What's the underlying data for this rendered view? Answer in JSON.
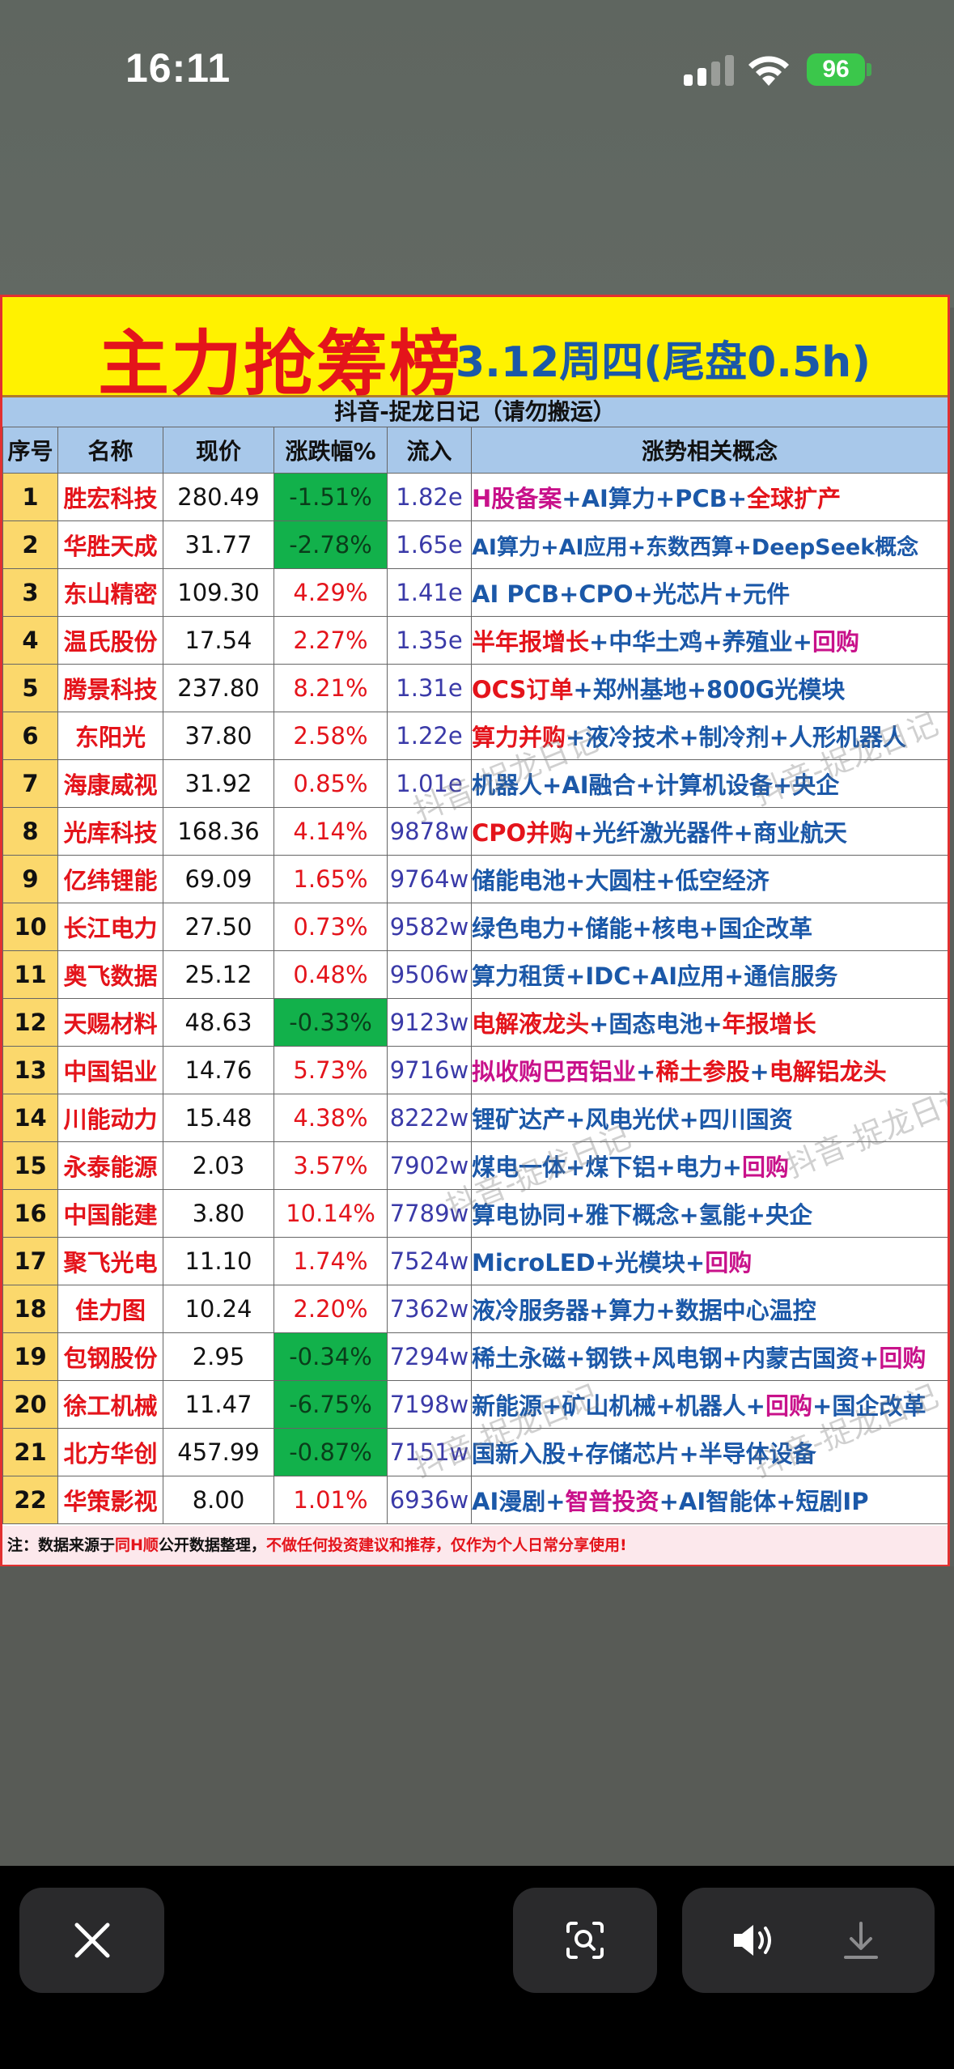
{
  "status_bar": {
    "time": "16:11",
    "battery": "96"
  },
  "card": {
    "title": "主力抢筹榜",
    "subtitle": "3.12周四(尾盘0.5h)",
    "source": "抖音-捉龙日记（请勿搬运）",
    "headers": [
      "序号",
      "名称",
      "现价",
      "涨跌幅%",
      "流入",
      "涨势相关概念"
    ],
    "rows": [
      {
        "idx": "1",
        "name": "胜宏科技",
        "price": "280.49",
        "change": "-1.51%",
        "flow": "1.82e",
        "concepts": [
          [
            "H股备案",
            "mag"
          ],
          [
            "AI算力",
            "blue"
          ],
          [
            "PCB",
            "blue"
          ],
          [
            "全球扩产",
            "red"
          ]
        ]
      },
      {
        "idx": "2",
        "name": "华胜天成",
        "price": "31.77",
        "change": "-2.78%",
        "flow": "1.65e",
        "concepts": [
          [
            "AI算力",
            "blue"
          ],
          [
            "AI应用",
            "blue"
          ],
          [
            "东数西算",
            "blue"
          ],
          [
            "DeepSeek概念",
            "blue"
          ]
        ]
      },
      {
        "idx": "3",
        "name": "东山精密",
        "price": "109.30",
        "change": "4.29%",
        "flow": "1.41e",
        "concepts": [
          [
            "AI PCB",
            "blue"
          ],
          [
            "CPO",
            "blue"
          ],
          [
            "光芯片",
            "blue"
          ],
          [
            "元件",
            "blue"
          ]
        ]
      },
      {
        "idx": "4",
        "name": "温氏股份",
        "price": "17.54",
        "change": "2.27%",
        "flow": "1.35e",
        "concepts": [
          [
            "半年报增长",
            "red"
          ],
          [
            "中华土鸡",
            "blue"
          ],
          [
            "养殖业",
            "blue"
          ],
          [
            "回购",
            "mag"
          ]
        ]
      },
      {
        "idx": "5",
        "name": "腾景科技",
        "price": "237.80",
        "change": "8.21%",
        "flow": "1.31e",
        "concepts": [
          [
            "OCS订单",
            "red"
          ],
          [
            "郑州基地",
            "blue"
          ],
          [
            "800G光模块",
            "blue"
          ]
        ]
      },
      {
        "idx": "6",
        "name": "东阳光",
        "price": "37.80",
        "change": "2.58%",
        "flow": "1.22e",
        "concepts": [
          [
            "算力并购",
            "red"
          ],
          [
            "液冷技术",
            "blue"
          ],
          [
            "制冷剂",
            "blue"
          ],
          [
            "人形机器人",
            "blue"
          ]
        ]
      },
      {
        "idx": "7",
        "name": "海康威视",
        "price": "31.92",
        "change": "0.85%",
        "flow": "1.01e",
        "concepts": [
          [
            "机器人",
            "blue"
          ],
          [
            "AI融合",
            "blue"
          ],
          [
            "计算机设备",
            "blue"
          ],
          [
            "央企",
            "blue"
          ]
        ]
      },
      {
        "idx": "8",
        "name": "光库科技",
        "price": "168.36",
        "change": "4.14%",
        "flow": "9878w",
        "concepts": [
          [
            "CPO并购",
            "red"
          ],
          [
            "光纤激光器件",
            "blue"
          ],
          [
            "商业航天",
            "blue"
          ]
        ]
      },
      {
        "idx": "9",
        "name": "亿纬锂能",
        "price": "69.09",
        "change": "1.65%",
        "flow": "9764w",
        "concepts": [
          [
            "储能电池",
            "blue"
          ],
          [
            "大圆柱",
            "blue"
          ],
          [
            "低空经济",
            "blue"
          ]
        ]
      },
      {
        "idx": "10",
        "name": "长江电力",
        "price": "27.50",
        "change": "0.73%",
        "flow": "9582w",
        "concepts": [
          [
            "绿色电力",
            "blue"
          ],
          [
            "储能",
            "blue"
          ],
          [
            "核电",
            "blue"
          ],
          [
            "国企改革",
            "blue"
          ]
        ]
      },
      {
        "idx": "11",
        "name": "奥飞数据",
        "price": "25.12",
        "change": "0.48%",
        "flow": "9506w",
        "concepts": [
          [
            "算力租赁",
            "blue"
          ],
          [
            "IDC",
            "blue"
          ],
          [
            "AI应用",
            "blue"
          ],
          [
            "通信服务",
            "blue"
          ]
        ]
      },
      {
        "idx": "12",
        "name": "天赐材料",
        "price": "48.63",
        "change": "-0.33%",
        "flow": "9123w",
        "concepts": [
          [
            "电解液龙头",
            "red"
          ],
          [
            "固态电池",
            "blue"
          ],
          [
            "年报增长",
            "red"
          ]
        ]
      },
      {
        "idx": "13",
        "name": "中国铝业",
        "price": "14.76",
        "change": "5.73%",
        "flow": "9716w",
        "concepts": [
          [
            "拟收购巴西铝业",
            "mag"
          ],
          [
            "稀土参股",
            "red"
          ],
          [
            "电解铝龙头",
            "red"
          ]
        ]
      },
      {
        "idx": "14",
        "name": "川能动力",
        "price": "15.48",
        "change": "4.38%",
        "flow": "8222w",
        "concepts": [
          [
            "锂矿达产",
            "blue"
          ],
          [
            "风电光伏",
            "blue"
          ],
          [
            "四川国资",
            "blue"
          ]
        ]
      },
      {
        "idx": "15",
        "name": "永泰能源",
        "price": "2.03",
        "change": "3.57%",
        "flow": "7902w",
        "concepts": [
          [
            "煤电一体",
            "blue"
          ],
          [
            "煤下铝",
            "blue"
          ],
          [
            "电力",
            "blue"
          ],
          [
            "回购",
            "mag"
          ]
        ]
      },
      {
        "idx": "16",
        "name": "中国能建",
        "price": "3.80",
        "change": "10.14%",
        "flow": "7789w",
        "concepts": [
          [
            "算电协同",
            "blue"
          ],
          [
            "雅下概念",
            "blue"
          ],
          [
            "氢能",
            "blue"
          ],
          [
            "央企",
            "blue"
          ]
        ]
      },
      {
        "idx": "17",
        "name": "聚飞光电",
        "price": "11.10",
        "change": "1.74%",
        "flow": "7524w",
        "concepts": [
          [
            "MicroLED",
            "blue"
          ],
          [
            "光模块",
            "blue"
          ],
          [
            "回购",
            "mag"
          ]
        ]
      },
      {
        "idx": "18",
        "name": "佳力图",
        "price": "10.24",
        "change": "2.20%",
        "flow": "7362w",
        "concepts": [
          [
            "液冷服务器",
            "blue"
          ],
          [
            "算力",
            "blue"
          ],
          [
            "数据中心温控",
            "blue"
          ]
        ]
      },
      {
        "idx": "19",
        "name": "包钢股份",
        "price": "2.95",
        "change": "-0.34%",
        "flow": "7294w",
        "concepts": [
          [
            "稀土永磁",
            "blue"
          ],
          [
            "钢铁",
            "blue"
          ],
          [
            "风电钢",
            "blue"
          ],
          [
            "内蒙古国资",
            "blue"
          ],
          [
            "回购",
            "mag"
          ]
        ]
      },
      {
        "idx": "20",
        "name": "徐工机械",
        "price": "11.47",
        "change": "-6.75%",
        "flow": "7198w",
        "concepts": [
          [
            "新能源",
            "blue"
          ],
          [
            "矿山机械",
            "blue"
          ],
          [
            "机器人",
            "blue"
          ],
          [
            "回购",
            "mag"
          ],
          [
            "国企改革",
            "blue"
          ]
        ]
      },
      {
        "idx": "21",
        "name": "北方华创",
        "price": "457.99",
        "change": "-0.87%",
        "flow": "7151w",
        "concepts": [
          [
            "国新入股",
            "blue"
          ],
          [
            "存储芯片",
            "blue"
          ],
          [
            "半导体设备",
            "blue"
          ]
        ]
      },
      {
        "idx": "22",
        "name": "华策影视",
        "price": "8.00",
        "change": "1.01%",
        "flow": "6936w",
        "concepts": [
          [
            "AI漫剧",
            "blue"
          ],
          [
            "智普投资",
            "mag"
          ],
          [
            "AI智能体",
            "blue"
          ],
          [
            "短剧IP",
            "blue"
          ]
        ]
      }
    ],
    "footnote_a": "注：数据来源于",
    "footnote_b": "同H顺",
    "footnote_c": "公开数据整理，",
    "footnote_d": "不做任何投资建议和推荐，仅作为个人日常分享使用!",
    "watermark": "抖音-捉龙日记"
  },
  "colors": {
    "title_red": "#e4141b",
    "title_blue": "#1b58a8",
    "neg_green": "#12b14b",
    "header_blue": "#a8c8ea",
    "index_yellow": "#fbd86c"
  }
}
